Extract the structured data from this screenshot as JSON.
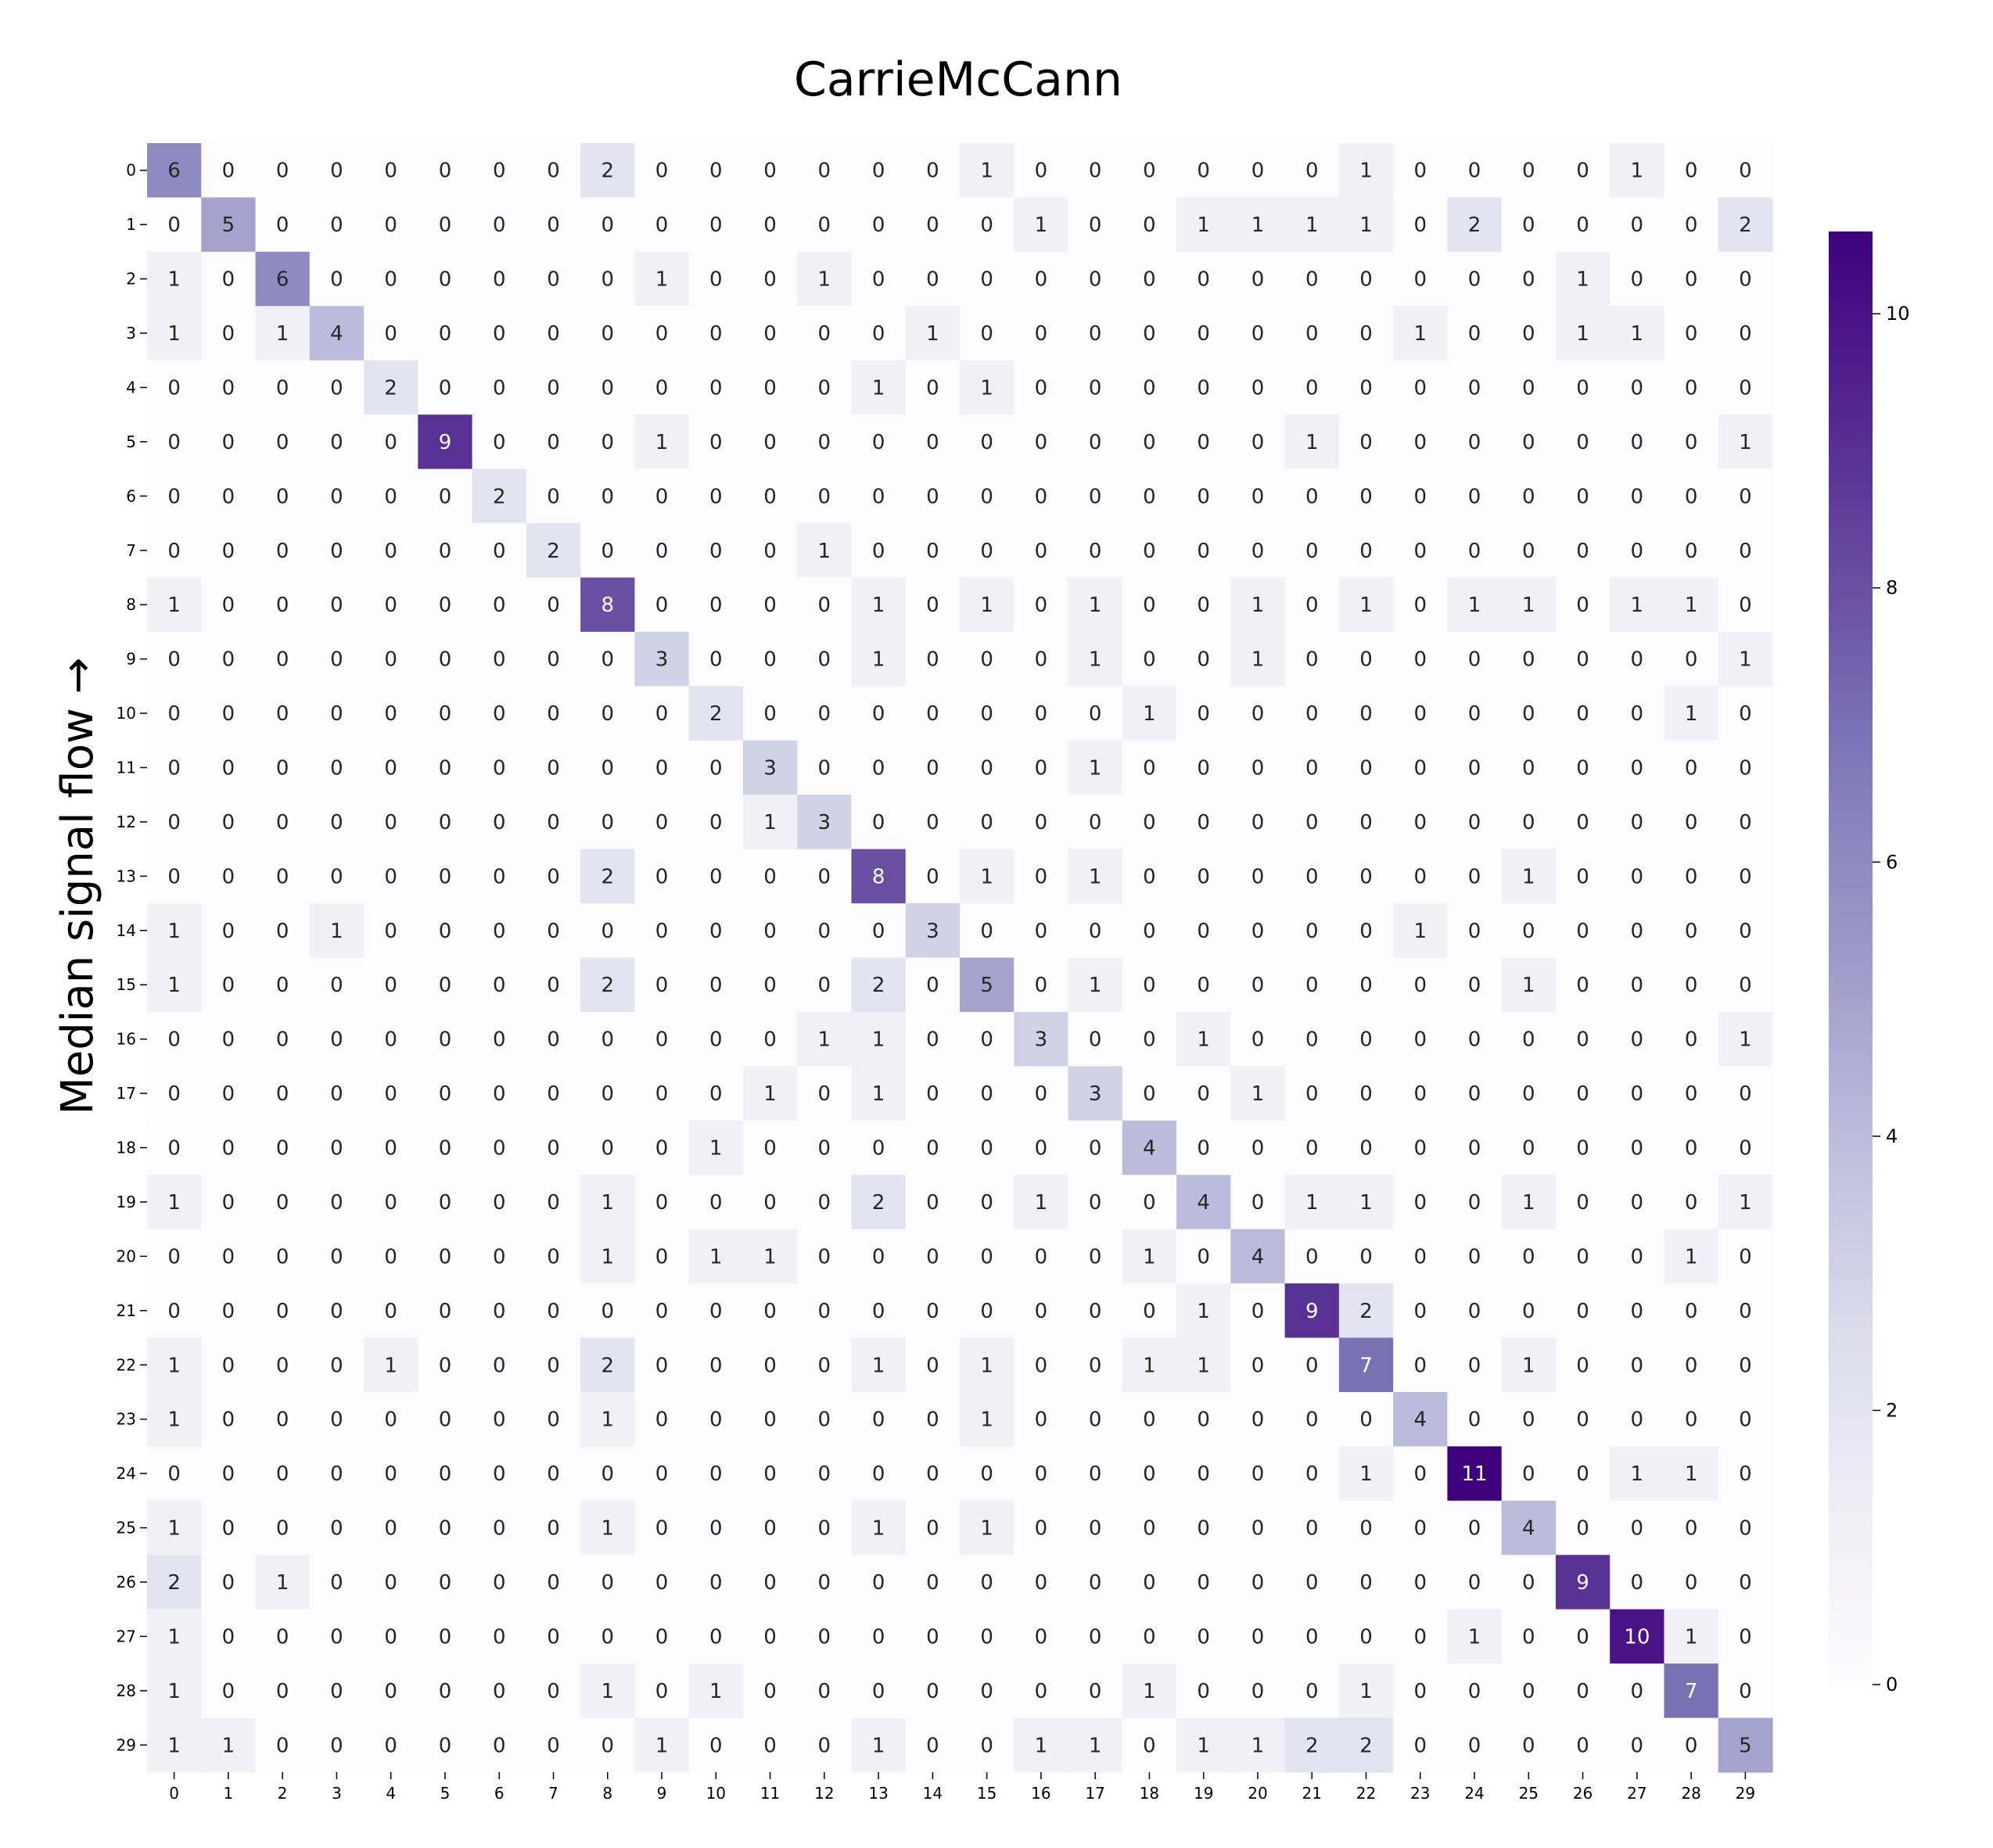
{
  "chart_data": {
    "type": "heatmap",
    "title": "CarrieMcCann",
    "xlabel": "",
    "ylabel": "Median signal flow →",
    "x_categories": [
      "0",
      "1",
      "2",
      "3",
      "4",
      "5",
      "6",
      "7",
      "8",
      "9",
      "10",
      "11",
      "12",
      "13",
      "14",
      "15",
      "16",
      "17",
      "18",
      "19",
      "20",
      "21",
      "22",
      "23",
      "24",
      "25",
      "26",
      "27",
      "28",
      "29"
    ],
    "y_categories": [
      "0",
      "1",
      "2",
      "3",
      "4",
      "5",
      "6",
      "7",
      "8",
      "9",
      "10",
      "11",
      "12",
      "13",
      "14",
      "15",
      "16",
      "17",
      "18",
      "19",
      "20",
      "21",
      "22",
      "23",
      "24",
      "25",
      "26",
      "27",
      "28",
      "29"
    ],
    "matrix": [
      [
        6,
        0,
        0,
        0,
        0,
        0,
        0,
        0,
        2,
        0,
        0,
        0,
        0,
        0,
        0,
        1,
        0,
        0,
        0,
        0,
        0,
        0,
        1,
        0,
        0,
        0,
        0,
        1,
        0,
        0
      ],
      [
        0,
        5,
        0,
        0,
        0,
        0,
        0,
        0,
        0,
        0,
        0,
        0,
        0,
        0,
        0,
        0,
        1,
        0,
        0,
        1,
        1,
        1,
        1,
        0,
        2,
        0,
        0,
        0,
        0,
        2
      ],
      [
        1,
        0,
        6,
        0,
        0,
        0,
        0,
        0,
        0,
        1,
        0,
        0,
        1,
        0,
        0,
        0,
        0,
        0,
        0,
        0,
        0,
        0,
        0,
        0,
        0,
        0,
        1,
        0,
        0,
        0
      ],
      [
        1,
        0,
        1,
        4,
        0,
        0,
        0,
        0,
        0,
        0,
        0,
        0,
        0,
        0,
        1,
        0,
        0,
        0,
        0,
        0,
        0,
        0,
        0,
        1,
        0,
        0,
        1,
        1,
        0,
        0
      ],
      [
        0,
        0,
        0,
        0,
        2,
        0,
        0,
        0,
        0,
        0,
        0,
        0,
        0,
        1,
        0,
        1,
        0,
        0,
        0,
        0,
        0,
        0,
        0,
        0,
        0,
        0,
        0,
        0,
        0,
        0
      ],
      [
        0,
        0,
        0,
        0,
        0,
        9,
        0,
        0,
        0,
        1,
        0,
        0,
        0,
        0,
        0,
        0,
        0,
        0,
        0,
        0,
        0,
        1,
        0,
        0,
        0,
        0,
        0,
        0,
        0,
        1
      ],
      [
        0,
        0,
        0,
        0,
        0,
        0,
        2,
        0,
        0,
        0,
        0,
        0,
        0,
        0,
        0,
        0,
        0,
        0,
        0,
        0,
        0,
        0,
        0,
        0,
        0,
        0,
        0,
        0,
        0,
        0
      ],
      [
        0,
        0,
        0,
        0,
        0,
        0,
        0,
        2,
        0,
        0,
        0,
        0,
        1,
        0,
        0,
        0,
        0,
        0,
        0,
        0,
        0,
        0,
        0,
        0,
        0,
        0,
        0,
        0,
        0,
        0
      ],
      [
        1,
        0,
        0,
        0,
        0,
        0,
        0,
        0,
        8,
        0,
        0,
        0,
        0,
        1,
        0,
        1,
        0,
        1,
        0,
        0,
        1,
        0,
        1,
        0,
        1,
        1,
        0,
        1,
        1,
        0
      ],
      [
        0,
        0,
        0,
        0,
        0,
        0,
        0,
        0,
        0,
        3,
        0,
        0,
        0,
        1,
        0,
        0,
        0,
        1,
        0,
        0,
        1,
        0,
        0,
        0,
        0,
        0,
        0,
        0,
        0,
        1
      ],
      [
        0,
        0,
        0,
        0,
        0,
        0,
        0,
        0,
        0,
        0,
        2,
        0,
        0,
        0,
        0,
        0,
        0,
        0,
        1,
        0,
        0,
        0,
        0,
        0,
        0,
        0,
        0,
        0,
        1,
        0
      ],
      [
        0,
        0,
        0,
        0,
        0,
        0,
        0,
        0,
        0,
        0,
        0,
        3,
        0,
        0,
        0,
        0,
        0,
        1,
        0,
        0,
        0,
        0,
        0,
        0,
        0,
        0,
        0,
        0,
        0,
        0
      ],
      [
        0,
        0,
        0,
        0,
        0,
        0,
        0,
        0,
        0,
        0,
        0,
        1,
        3,
        0,
        0,
        0,
        0,
        0,
        0,
        0,
        0,
        0,
        0,
        0,
        0,
        0,
        0,
        0,
        0,
        0
      ],
      [
        0,
        0,
        0,
        0,
        0,
        0,
        0,
        0,
        2,
        0,
        0,
        0,
        0,
        8,
        0,
        1,
        0,
        1,
        0,
        0,
        0,
        0,
        0,
        0,
        0,
        1,
        0,
        0,
        0,
        0
      ],
      [
        1,
        0,
        0,
        1,
        0,
        0,
        0,
        0,
        0,
        0,
        0,
        0,
        0,
        0,
        3,
        0,
        0,
        0,
        0,
        0,
        0,
        0,
        0,
        1,
        0,
        0,
        0,
        0,
        0,
        0
      ],
      [
        1,
        0,
        0,
        0,
        0,
        0,
        0,
        0,
        2,
        0,
        0,
        0,
        0,
        2,
        0,
        5,
        0,
        1,
        0,
        0,
        0,
        0,
        0,
        0,
        0,
        1,
        0,
        0,
        0,
        0
      ],
      [
        0,
        0,
        0,
        0,
        0,
        0,
        0,
        0,
        0,
        0,
        0,
        0,
        1,
        1,
        0,
        0,
        3,
        0,
        0,
        1,
        0,
        0,
        0,
        0,
        0,
        0,
        0,
        0,
        0,
        1
      ],
      [
        0,
        0,
        0,
        0,
        0,
        0,
        0,
        0,
        0,
        0,
        0,
        1,
        0,
        1,
        0,
        0,
        0,
        3,
        0,
        0,
        1,
        0,
        0,
        0,
        0,
        0,
        0,
        0,
        0,
        0
      ],
      [
        0,
        0,
        0,
        0,
        0,
        0,
        0,
        0,
        0,
        0,
        1,
        0,
        0,
        0,
        0,
        0,
        0,
        0,
        4,
        0,
        0,
        0,
        0,
        0,
        0,
        0,
        0,
        0,
        0,
        0
      ],
      [
        1,
        0,
        0,
        0,
        0,
        0,
        0,
        0,
        1,
        0,
        0,
        0,
        0,
        2,
        0,
        0,
        1,
        0,
        0,
        4,
        0,
        1,
        1,
        0,
        0,
        1,
        0,
        0,
        0,
        1
      ],
      [
        0,
        0,
        0,
        0,
        0,
        0,
        0,
        0,
        1,
        0,
        1,
        1,
        0,
        0,
        0,
        0,
        0,
        0,
        1,
        0,
        4,
        0,
        0,
        0,
        0,
        0,
        0,
        0,
        1,
        0
      ],
      [
        0,
        0,
        0,
        0,
        0,
        0,
        0,
        0,
        0,
        0,
        0,
        0,
        0,
        0,
        0,
        0,
        0,
        0,
        0,
        1,
        0,
        9,
        2,
        0,
        0,
        0,
        0,
        0,
        0,
        0
      ],
      [
        1,
        0,
        0,
        0,
        1,
        0,
        0,
        0,
        2,
        0,
        0,
        0,
        0,
        1,
        0,
        1,
        0,
        0,
        1,
        1,
        0,
        0,
        7,
        0,
        0,
        1,
        0,
        0,
        0,
        0
      ],
      [
        1,
        0,
        0,
        0,
        0,
        0,
        0,
        0,
        1,
        0,
        0,
        0,
        0,
        0,
        0,
        1,
        0,
        0,
        0,
        0,
        0,
        0,
        0,
        4,
        0,
        0,
        0,
        0,
        0,
        0
      ],
      [
        0,
        0,
        0,
        0,
        0,
        0,
        0,
        0,
        0,
        0,
        0,
        0,
        0,
        0,
        0,
        0,
        0,
        0,
        0,
        0,
        0,
        0,
        1,
        0,
        11,
        0,
        0,
        1,
        1,
        0
      ],
      [
        1,
        0,
        0,
        0,
        0,
        0,
        0,
        0,
        1,
        0,
        0,
        0,
        0,
        1,
        0,
        1,
        0,
        0,
        0,
        0,
        0,
        0,
        0,
        0,
        0,
        4,
        0,
        0,
        0,
        0
      ],
      [
        2,
        0,
        1,
        0,
        0,
        0,
        0,
        0,
        0,
        0,
        0,
        0,
        0,
        0,
        0,
        0,
        0,
        0,
        0,
        0,
        0,
        0,
        0,
        0,
        0,
        0,
        9,
        0,
        0,
        0
      ],
      [
        1,
        0,
        0,
        0,
        0,
        0,
        0,
        0,
        0,
        0,
        0,
        0,
        0,
        0,
        0,
        0,
        0,
        0,
        0,
        0,
        0,
        0,
        0,
        0,
        1,
        0,
        0,
        10,
        1,
        0
      ],
      [
        1,
        0,
        0,
        0,
        0,
        0,
        0,
        0,
        1,
        0,
        1,
        0,
        0,
        0,
        0,
        0,
        0,
        0,
        1,
        0,
        0,
        0,
        1,
        0,
        0,
        0,
        0,
        0,
        7,
        0
      ],
      [
        1,
        1,
        0,
        0,
        0,
        0,
        0,
        0,
        0,
        1,
        0,
        0,
        0,
        1,
        0,
        0,
        1,
        1,
        0,
        1,
        1,
        2,
        2,
        0,
        0,
        0,
        0,
        0,
        0,
        5
      ]
    ],
    "colormap": "Purples",
    "vmin": 0,
    "vmax": 10.6,
    "colorbar_ticks": [
      0,
      2,
      4,
      6,
      8,
      10
    ],
    "annotations": true
  },
  "colors": {
    "low": "#fcfbfd",
    "high": "#3f007d",
    "text_dark": "#262626",
    "text_light": "#ffffff"
  }
}
